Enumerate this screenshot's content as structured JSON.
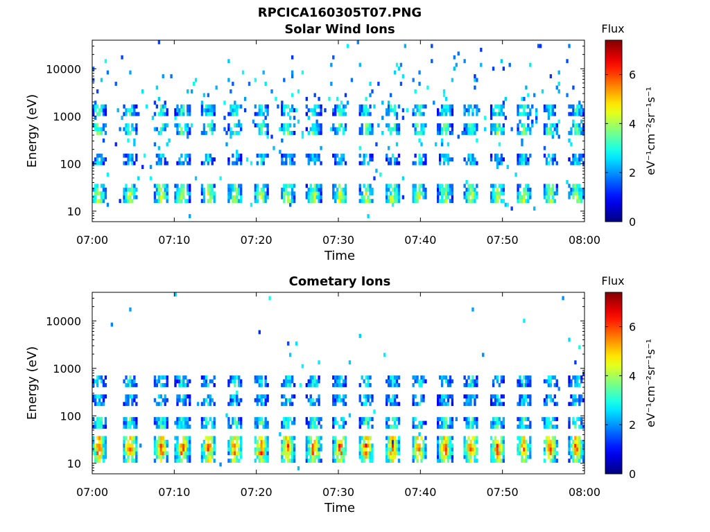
{
  "figure_title": "RPCICA160305T07.PNG",
  "colorbar_ticks": [
    "0",
    "2",
    "4",
    "6"
  ],
  "chart_data": [
    {
      "type": "heatmap",
      "title": "Solar Wind Ions",
      "xlabel": "Time",
      "ylabel": "Energy (eV)",
      "x_ticks": [
        "07:00",
        "07:10",
        "07:20",
        "07:30",
        "07:40",
        "07:50",
        "08:00"
      ],
      "x_range": [
        "07:00",
        "08:00"
      ],
      "y_ticks": [
        "10",
        "100",
        "1000",
        "10000"
      ],
      "y_scale": "log",
      "y_range": [
        6,
        40000
      ],
      "colorbar_label": "Flux",
      "colorbar_units": "eV⁻¹cm⁻²sr⁻¹s⁻¹",
      "colorbar_range": [
        0,
        7.4
      ],
      "colormap": "jet",
      "sweep_minutes": [
        0.8,
        4.6,
        8.4,
        11.0,
        14.2,
        17.4,
        20.6,
        23.8,
        27.0,
        30.2,
        33.4,
        36.6,
        39.8,
        43.0,
        46.2,
        49.4,
        52.6,
        55.8,
        59.0
      ],
      "bands": [
        {
          "center_eV": 20,
          "flux": 4.4
        },
        {
          "center_eV": 30,
          "flux": 3.8
        },
        {
          "center_eV": 120,
          "flux": 2.6
        },
        {
          "center_eV": 500,
          "flux": 3.6
        },
        {
          "center_eV": 1400,
          "flux": 3.2
        }
      ]
    },
    {
      "type": "heatmap",
      "title": "Cometary Ions",
      "xlabel": "Time",
      "ylabel": "Energy (eV)",
      "x_ticks": [
        "07:00",
        "07:10",
        "07:20",
        "07:30",
        "07:40",
        "07:50",
        "08:00"
      ],
      "x_range": [
        "07:00",
        "08:00"
      ],
      "y_ticks": [
        "10",
        "100",
        "1000",
        "10000"
      ],
      "y_scale": "log",
      "y_range": [
        6,
        40000
      ],
      "colorbar_label": "Flux",
      "colorbar_units": "eV⁻¹cm⁻²sr⁻¹s⁻¹",
      "colorbar_range": [
        0,
        7.4
      ],
      "colormap": "jet",
      "sweep_minutes": [
        0.8,
        4.6,
        8.4,
        11.0,
        14.2,
        17.4,
        20.6,
        23.8,
        27.0,
        30.2,
        33.4,
        36.6,
        39.8,
        43.0,
        46.2,
        49.4,
        52.6,
        55.8,
        59.0
      ],
      "bands": [
        {
          "center_eV": 20,
          "flux": 6.0
        },
        {
          "center_eV": 30,
          "flux": 5.2
        },
        {
          "center_eV": 15,
          "flux": 4.6
        },
        {
          "center_eV": 70,
          "flux": 3.4
        },
        {
          "center_eV": 200,
          "flux": 2.6
        },
        {
          "center_eV": 500,
          "flux": 2.8
        }
      ]
    }
  ]
}
